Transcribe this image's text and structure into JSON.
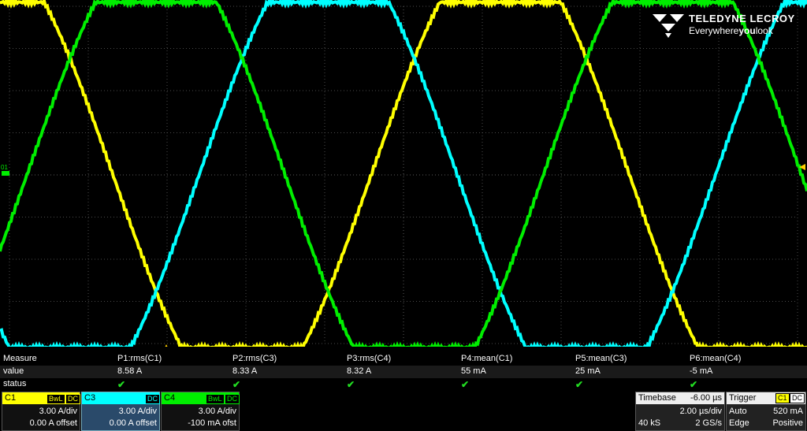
{
  "logo": {
    "brand": "TELEDYNE LECROY",
    "tag_pre": "Everywhere",
    "tag_bold": "you",
    "tag_post": "look"
  },
  "trace_marker": "01",
  "colors": {
    "c1": "#ffff00",
    "c3": "#00ffff",
    "c4": "#00ee00",
    "grid": "#4a4a4a",
    "trigger_marker": "#ffd000"
  },
  "measure": {
    "header_label": "Measure",
    "value_label": "value",
    "status_label": "status",
    "params": [
      {
        "name": "P1:rms(C1)",
        "value": "8.58 A",
        "status": "✔"
      },
      {
        "name": "P2:rms(C3)",
        "value": "8.33 A",
        "status": "✔"
      },
      {
        "name": "P3:rms(C4)",
        "value": "8.32 A",
        "status": "✔"
      },
      {
        "name": "P4:mean(C1)",
        "value": "55 mA",
        "status": "✔"
      },
      {
        "name": "P5:mean(C3)",
        "value": "25 mA",
        "status": "✔"
      },
      {
        "name": "P6:mean(C4)",
        "value": "-5 mA",
        "status": "✔"
      }
    ]
  },
  "channels": [
    {
      "name": "C1",
      "badges": [
        "BwL",
        "DC"
      ],
      "scale": "3.00 A/div",
      "offset": "0.00 A offset",
      "color": "#ffff00",
      "selected": false
    },
    {
      "name": "C3",
      "badges": [
        "DC"
      ],
      "scale": "3.00 A/div",
      "offset": "0.00 A offset",
      "color": "#00ffff",
      "selected": true
    },
    {
      "name": "C4",
      "badges": [
        "BwL",
        "DC"
      ],
      "scale": "3.00 A/div",
      "offset": "-100 mA ofst",
      "color": "#00ee00",
      "selected": false
    }
  ],
  "timebase": {
    "label": "Timebase",
    "delay": "-6.00 µs",
    "per_div": "2.00 µs/div",
    "samples": "40 kS",
    "rate": "2 GS/s"
  },
  "trigger": {
    "label": "Trigger",
    "source": "C1",
    "coupling": "DC",
    "mode": "Auto",
    "level": "520 mA",
    "type": "Edge",
    "slope": "Positive"
  },
  "waveforms": {
    "period_us": 12.8,
    "start_us": -6.0,
    "window_us": 20.0,
    "amplitude_div": 3.2,
    "series": [
      {
        "name": "C1",
        "phase_deg": 270
      },
      {
        "name": "C3",
        "phase_deg": 30
      },
      {
        "name": "C4",
        "phase_deg": 150
      }
    ]
  }
}
